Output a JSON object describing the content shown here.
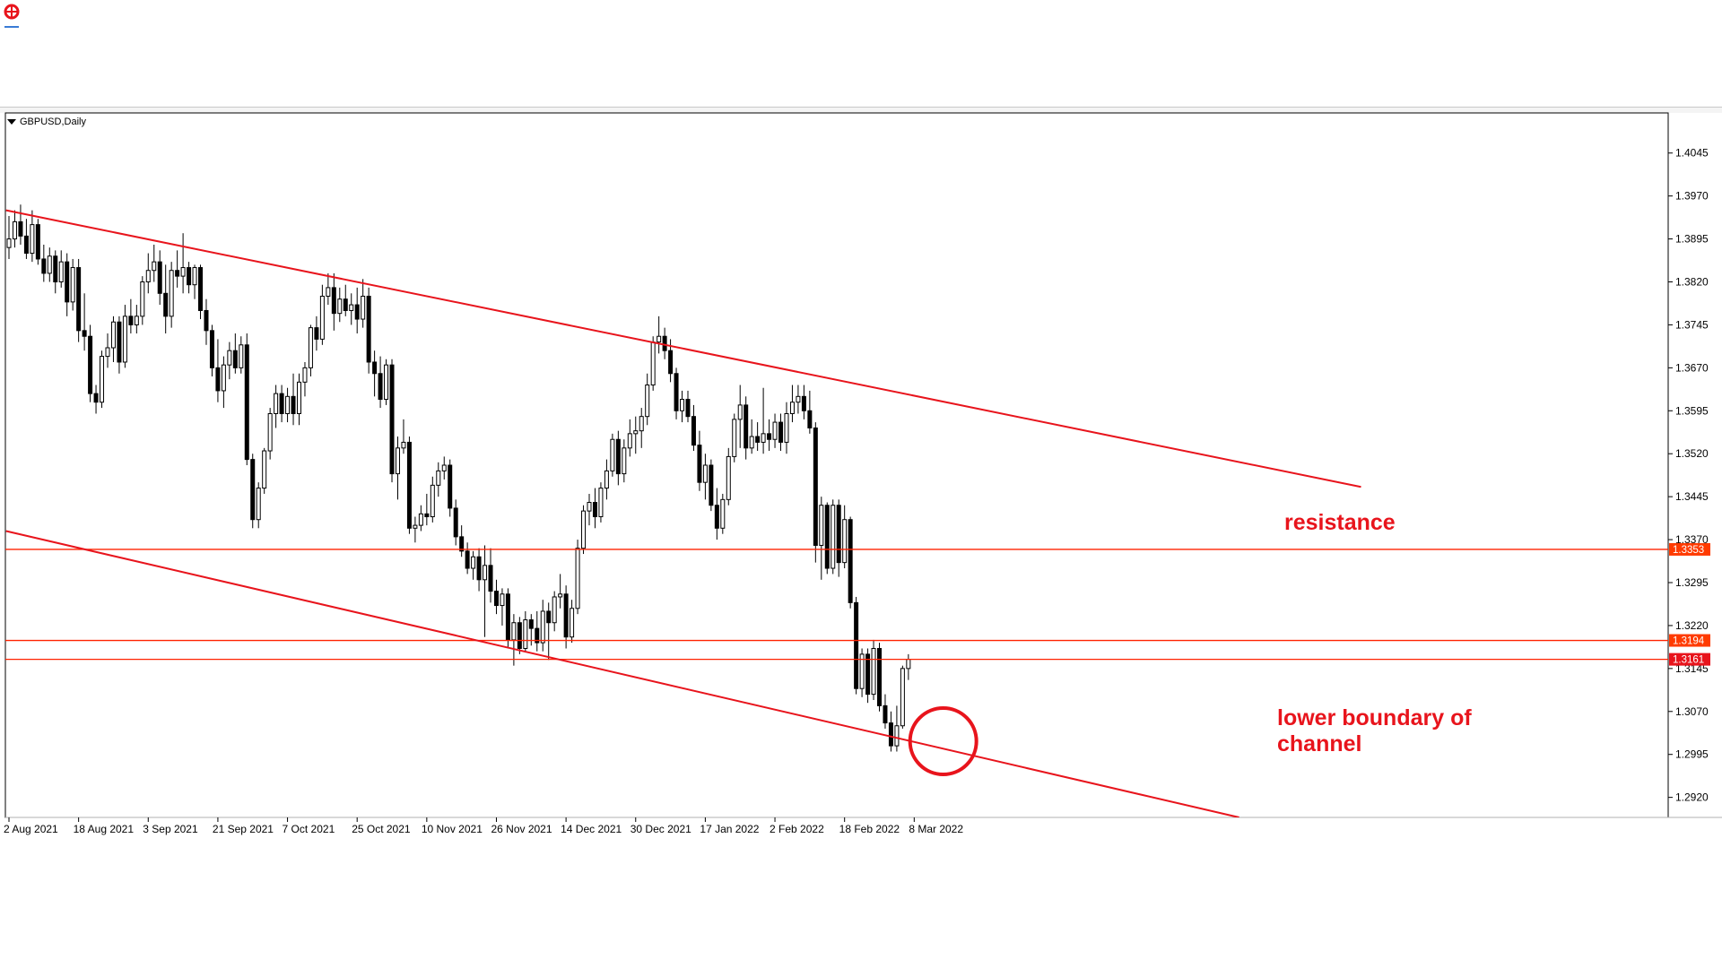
{
  "app": {
    "logo_icon": "mt-logo-icon"
  },
  "chart_header": {
    "symbol": "GBPUSD,Daily"
  },
  "annotations": {
    "resistance": "resistance",
    "lower_boundary": "lower boundary of channel"
  },
  "colors": {
    "line_red": "#e8141c",
    "hline_orange": "#ff2200",
    "price_tag_bg": "#ff3b00",
    "current_tag_bg": "#e8141c",
    "bull_body": "#ffffff",
    "bear_body": "#000000",
    "axis": "#000000"
  },
  "chart_data": {
    "type": "candlestick",
    "symbol": "GBPUSD",
    "timeframe": "Daily",
    "ylim": [
      1.2885,
      1.4115
    ],
    "y_ticks": [
      "1.4045",
      "1.3970",
      "1.3895",
      "1.3820",
      "1.3745",
      "1.3670",
      "1.3595",
      "1.3520",
      "1.3445",
      "1.3370",
      "1.3295",
      "1.3220",
      "1.3145",
      "1.3070",
      "1.2995",
      "1.2920"
    ],
    "x_ticks": [
      {
        "label": "2 Aug 2021",
        "i": 0
      },
      {
        "label": "18 Aug 2021",
        "i": 12
      },
      {
        "label": "3 Sep 2021",
        "i": 24
      },
      {
        "label": "21 Sep 2021",
        "i": 36
      },
      {
        "label": "7 Oct 2021",
        "i": 48
      },
      {
        "label": "25 Oct 2021",
        "i": 60
      },
      {
        "label": "10 Nov 2021",
        "i": 72
      },
      {
        "label": "26 Nov 2021",
        "i": 84
      },
      {
        "label": "14 Dec 2021",
        "i": 96
      },
      {
        "label": "30 Dec 2021",
        "i": 108
      },
      {
        "label": "17 Jan 2022",
        "i": 120
      },
      {
        "label": "2 Feb 2022",
        "i": 132
      },
      {
        "label": "18 Feb 2022",
        "i": 144
      },
      {
        "label": "8 Mar 2022",
        "i": 156
      }
    ],
    "horizontal_levels": [
      {
        "label": "1.3353",
        "value": 1.3353
      },
      {
        "label": "1.3194",
        "value": 1.3194
      },
      {
        "label": "1.3161",
        "value": 1.3161,
        "current": true
      }
    ],
    "channel_lines": [
      {
        "name": "upper",
        "from": {
          "i": -0.5,
          "price": 1.3945
        },
        "to": {
          "i": 233,
          "price": 1.3462
        }
      },
      {
        "name": "lower",
        "from": {
          "i": -0.5,
          "price": 1.3385
        },
        "to": {
          "i": 212,
          "price": 1.2885
        }
      }
    ],
    "circle_highlight": {
      "i": 161,
      "price": 1.3018
    },
    "ohlc": [
      [
        1.388,
        1.3935,
        1.386,
        1.3895
      ],
      [
        1.3895,
        1.3945,
        1.388,
        1.3925
      ],
      [
        1.3925,
        1.3955,
        1.3885,
        1.39
      ],
      [
        1.39,
        1.393,
        1.386,
        1.387
      ],
      [
        1.387,
        1.3945,
        1.3855,
        1.392
      ],
      [
        1.392,
        1.393,
        1.385,
        1.386
      ],
      [
        1.386,
        1.3885,
        1.382,
        1.3835
      ],
      [
        1.3835,
        1.388,
        1.382,
        1.3865
      ],
      [
        1.3865,
        1.3875,
        1.38,
        1.382
      ],
      [
        1.382,
        1.3875,
        1.381,
        1.3855
      ],
      [
        1.3855,
        1.387,
        1.376,
        1.3785
      ],
      [
        1.3785,
        1.386,
        1.377,
        1.3845
      ],
      [
        1.3845,
        1.386,
        1.3715,
        1.3735
      ],
      [
        1.3735,
        1.38,
        1.37,
        1.3725
      ],
      [
        1.3725,
        1.3745,
        1.361,
        1.3625
      ],
      [
        1.3625,
        1.364,
        1.359,
        1.361
      ],
      [
        1.361,
        1.37,
        1.36,
        1.369
      ],
      [
        1.369,
        1.373,
        1.367,
        1.3705
      ],
      [
        1.3705,
        1.376,
        1.368,
        1.375
      ],
      [
        1.375,
        1.376,
        1.366,
        1.368
      ],
      [
        1.368,
        1.378,
        1.367,
        1.376
      ],
      [
        1.376,
        1.379,
        1.373,
        1.3745
      ],
      [
        1.3745,
        1.378,
        1.373,
        1.376
      ],
      [
        1.376,
        1.383,
        1.3745,
        1.382
      ],
      [
        1.382,
        1.387,
        1.38,
        1.384
      ],
      [
        1.384,
        1.3885,
        1.382,
        1.3855
      ],
      [
        1.3855,
        1.3875,
        1.378,
        1.38
      ],
      [
        1.38,
        1.385,
        1.373,
        1.376
      ],
      [
        1.376,
        1.3855,
        1.374,
        1.384
      ],
      [
        1.384,
        1.3875,
        1.381,
        1.383
      ],
      [
        1.383,
        1.3905,
        1.38,
        1.3845
      ],
      [
        1.3845,
        1.3855,
        1.38,
        1.3815
      ],
      [
        1.3815,
        1.385,
        1.379,
        1.3845
      ],
      [
        1.3845,
        1.385,
        1.3755,
        1.377
      ],
      [
        1.377,
        1.379,
        1.371,
        1.3735
      ],
      [
        1.3735,
        1.3745,
        1.3655,
        1.367
      ],
      [
        1.367,
        1.372,
        1.361,
        1.363
      ],
      [
        1.363,
        1.369,
        1.36,
        1.3675
      ],
      [
        1.3675,
        1.3715,
        1.365,
        1.37
      ],
      [
        1.37,
        1.373,
        1.366,
        1.367
      ],
      [
        1.367,
        1.3725,
        1.366,
        1.371
      ],
      [
        1.371,
        1.373,
        1.35,
        1.351
      ],
      [
        1.351,
        1.352,
        1.339,
        1.3405
      ],
      [
        1.3405,
        1.347,
        1.339,
        1.346
      ],
      [
        1.346,
        1.353,
        1.345,
        1.3525
      ],
      [
        1.3525,
        1.36,
        1.351,
        1.359
      ],
      [
        1.359,
        1.364,
        1.3565,
        1.3625
      ],
      [
        1.3625,
        1.364,
        1.3575,
        1.359
      ],
      [
        1.359,
        1.3635,
        1.3575,
        1.362
      ],
      [
        1.362,
        1.366,
        1.357,
        1.359
      ],
      [
        1.359,
        1.366,
        1.357,
        1.3645
      ],
      [
        1.3645,
        1.368,
        1.362,
        1.367
      ],
      [
        1.367,
        1.3745,
        1.3655,
        1.374
      ],
      [
        1.374,
        1.376,
        1.37,
        1.372
      ],
      [
        1.372,
        1.3815,
        1.371,
        1.3795
      ],
      [
        1.3795,
        1.3835,
        1.378,
        1.381
      ],
      [
        1.381,
        1.3835,
        1.3735,
        1.3765
      ],
      [
        1.3765,
        1.381,
        1.375,
        1.379
      ],
      [
        1.379,
        1.3815,
        1.376,
        1.377
      ],
      [
        1.377,
        1.38,
        1.3745,
        1.378
      ],
      [
        1.378,
        1.381,
        1.373,
        1.3755
      ],
      [
        1.3755,
        1.3825,
        1.374,
        1.3795
      ],
      [
        1.3795,
        1.381,
        1.366,
        1.368
      ],
      [
        1.368,
        1.37,
        1.362,
        1.366
      ],
      [
        1.366,
        1.369,
        1.36,
        1.3615
      ],
      [
        1.3615,
        1.3685,
        1.3605,
        1.3675
      ],
      [
        1.3675,
        1.3685,
        1.347,
        1.3485
      ],
      [
        1.3485,
        1.355,
        1.344,
        1.353
      ],
      [
        1.353,
        1.358,
        1.352,
        1.354
      ],
      [
        1.354,
        1.355,
        1.338,
        1.339
      ],
      [
        1.339,
        1.341,
        1.3365,
        1.3395
      ],
      [
        1.3395,
        1.343,
        1.3385,
        1.3415
      ],
      [
        1.3415,
        1.345,
        1.3395,
        1.341
      ],
      [
        1.341,
        1.348,
        1.34,
        1.3465
      ],
      [
        1.3465,
        1.3505,
        1.3445,
        1.349
      ],
      [
        1.349,
        1.3515,
        1.3475,
        1.35
      ],
      [
        1.35,
        1.351,
        1.341,
        1.3425
      ],
      [
        1.3425,
        1.344,
        1.336,
        1.3375
      ],
      [
        1.3375,
        1.3395,
        1.334,
        1.335
      ],
      [
        1.335,
        1.3365,
        1.331,
        1.332
      ],
      [
        1.332,
        1.335,
        1.33,
        1.334
      ],
      [
        1.334,
        1.3355,
        1.328,
        1.33
      ],
      [
        1.33,
        1.336,
        1.32,
        1.3325
      ],
      [
        1.3325,
        1.3355,
        1.326,
        1.328
      ],
      [
        1.328,
        1.33,
        1.324,
        1.3255
      ],
      [
        1.3255,
        1.3285,
        1.322,
        1.3275
      ],
      [
        1.3275,
        1.3285,
        1.318,
        1.3195
      ],
      [
        1.3195,
        1.324,
        1.315,
        1.3225
      ],
      [
        1.3225,
        1.3235,
        1.317,
        1.318
      ],
      [
        1.318,
        1.3245,
        1.3175,
        1.323
      ],
      [
        1.323,
        1.324,
        1.3185,
        1.3215
      ],
      [
        1.3215,
        1.3245,
        1.3175,
        1.319
      ],
      [
        1.319,
        1.3265,
        1.3175,
        1.3245
      ],
      [
        1.3245,
        1.326,
        1.316,
        1.3225
      ],
      [
        1.3225,
        1.328,
        1.321,
        1.327
      ],
      [
        1.327,
        1.331,
        1.325,
        1.3275
      ],
      [
        1.3275,
        1.329,
        1.318,
        1.32
      ],
      [
        1.32,
        1.3265,
        1.319,
        1.325
      ],
      [
        1.325,
        1.337,
        1.324,
        1.3355
      ],
      [
        1.3355,
        1.343,
        1.3345,
        1.342
      ],
      [
        1.342,
        1.345,
        1.3395,
        1.3435
      ],
      [
        1.3435,
        1.346,
        1.339,
        1.341
      ],
      [
        1.341,
        1.347,
        1.34,
        1.346
      ],
      [
        1.346,
        1.351,
        1.344,
        1.349
      ],
      [
        1.349,
        1.3555,
        1.348,
        1.3545
      ],
      [
        1.3545,
        1.356,
        1.3465,
        1.3485
      ],
      [
        1.3485,
        1.3545,
        1.347,
        1.353
      ],
      [
        1.353,
        1.358,
        1.3515,
        1.3555
      ],
      [
        1.3555,
        1.3585,
        1.352,
        1.356
      ],
      [
        1.356,
        1.36,
        1.353,
        1.3585
      ],
      [
        1.3585,
        1.366,
        1.357,
        1.364
      ],
      [
        1.364,
        1.3725,
        1.363,
        1.3715
      ],
      [
        1.3715,
        1.376,
        1.3695,
        1.3725
      ],
      [
        1.3725,
        1.374,
        1.3685,
        1.37
      ],
      [
        1.37,
        1.372,
        1.3645,
        1.366
      ],
      [
        1.366,
        1.367,
        1.358,
        1.3595
      ],
      [
        1.3595,
        1.363,
        1.3575,
        1.3615
      ],
      [
        1.3615,
        1.363,
        1.3575,
        1.3585
      ],
      [
        1.3585,
        1.3605,
        1.3525,
        1.3535
      ],
      [
        1.3535,
        1.356,
        1.3455,
        1.347
      ],
      [
        1.347,
        1.352,
        1.344,
        1.35
      ],
      [
        1.35,
        1.351,
        1.342,
        1.343
      ],
      [
        1.343,
        1.346,
        1.337,
        1.339
      ],
      [
        1.339,
        1.345,
        1.338,
        1.344
      ],
      [
        1.344,
        1.353,
        1.343,
        1.3515
      ],
      [
        1.3515,
        1.359,
        1.3505,
        1.358
      ],
      [
        1.358,
        1.364,
        1.353,
        1.3605
      ],
      [
        1.3605,
        1.362,
        1.351,
        1.353
      ],
      [
        1.353,
        1.358,
        1.352,
        1.355
      ],
      [
        1.355,
        1.3575,
        1.3525,
        1.354
      ],
      [
        1.354,
        1.3635,
        1.352,
        1.3555
      ],
      [
        1.3555,
        1.358,
        1.3525,
        1.3545
      ],
      [
        1.3545,
        1.359,
        1.353,
        1.3575
      ],
      [
        1.3575,
        1.359,
        1.3525,
        1.354
      ],
      [
        1.354,
        1.361,
        1.352,
        1.359
      ],
      [
        1.359,
        1.364,
        1.3575,
        1.361
      ],
      [
        1.361,
        1.364,
        1.359,
        1.362
      ],
      [
        1.362,
        1.364,
        1.358,
        1.3595
      ],
      [
        1.3595,
        1.363,
        1.3555,
        1.3565
      ],
      [
        1.3565,
        1.3575,
        1.333,
        1.336
      ],
      [
        1.336,
        1.3445,
        1.33,
        1.343
      ],
      [
        1.343,
        1.3435,
        1.331,
        1.332
      ],
      [
        1.332,
        1.344,
        1.331,
        1.343
      ],
      [
        1.343,
        1.344,
        1.3305,
        1.333
      ],
      [
        1.333,
        1.343,
        1.332,
        1.3405
      ],
      [
        1.3405,
        1.341,
        1.325,
        1.326
      ],
      [
        1.326,
        1.327,
        1.31,
        1.311
      ],
      [
        1.311,
        1.318,
        1.3095,
        1.317
      ],
      [
        1.317,
        1.318,
        1.3085,
        1.31
      ],
      [
        1.31,
        1.3195,
        1.309,
        1.318
      ],
      [
        1.318,
        1.319,
        1.307,
        1.308
      ],
      [
        1.308,
        1.31,
        1.304,
        1.305
      ],
      [
        1.305,
        1.307,
        1.3,
        1.301
      ],
      [
        1.301,
        1.308,
        1.3,
        1.3045
      ],
      [
        1.3045,
        1.315,
        1.304,
        1.3145
      ],
      [
        1.3145,
        1.317,
        1.3125,
        1.3161
      ]
    ]
  }
}
